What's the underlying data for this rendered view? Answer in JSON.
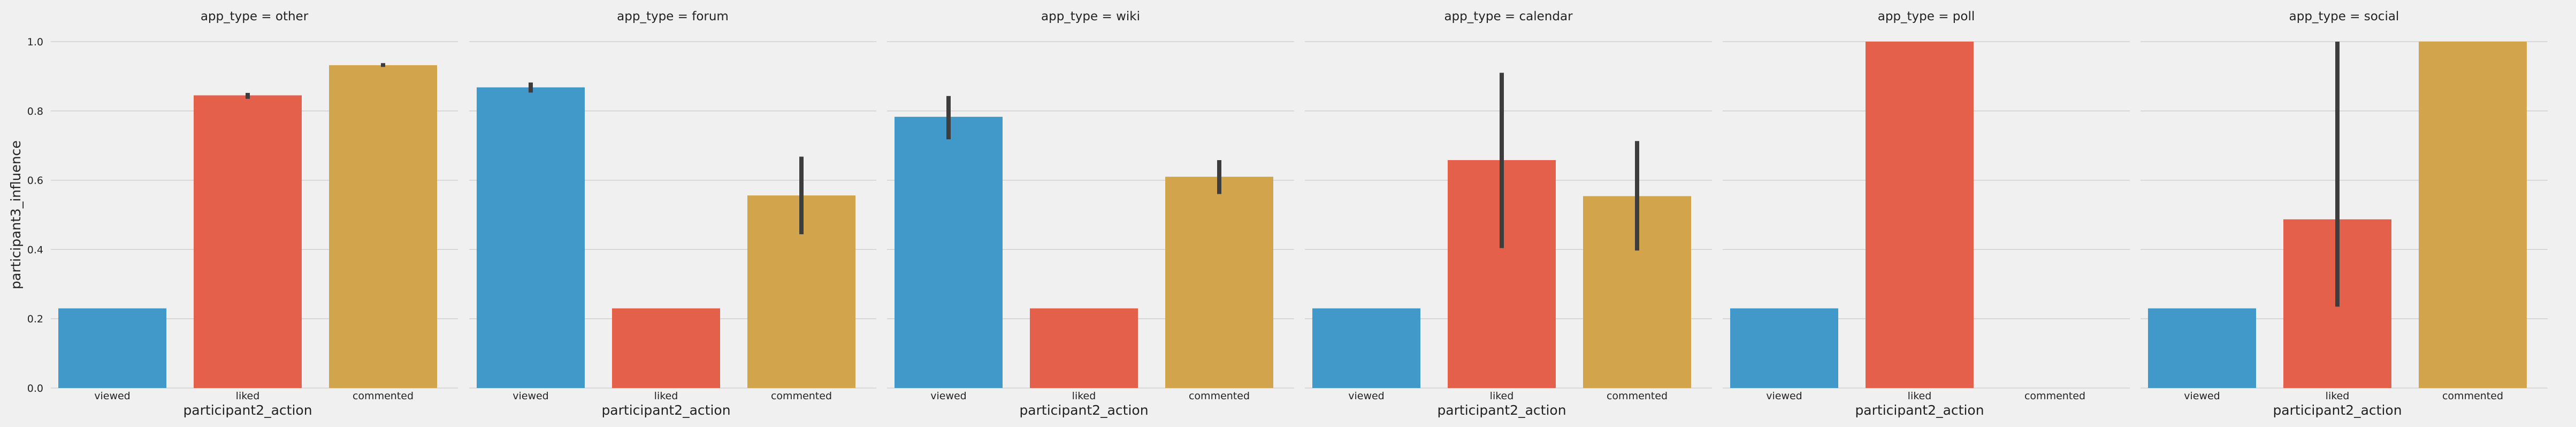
{
  "chart_data": {
    "type": "bar",
    "ylabel": "participant3_influence",
    "xlabel": "participant2_action",
    "ylim": [
      0,
      1.0
    ],
    "yticks": [
      "0.0",
      "0.2",
      "0.4",
      "0.6",
      "0.8",
      "1.0"
    ],
    "categories": [
      "viewed",
      "liked",
      "commented"
    ],
    "colors": [
      "#4199c9",
      "#e5604a",
      "#d2a54c"
    ],
    "panels": [
      {
        "title": "app_type = other",
        "values": [
          0.23,
          0.845,
          0.932
        ],
        "errors": [
          null,
          [
            0.835,
            0.852
          ],
          [
            0.927,
            0.938
          ]
        ]
      },
      {
        "title": "app_type = forum",
        "values": [
          0.868,
          0.23,
          0.556
        ],
        "errors": [
          [
            0.853,
            0.882
          ],
          null,
          [
            0.444,
            0.668
          ]
        ]
      },
      {
        "title": "app_type = wiki",
        "values": [
          0.783,
          0.23,
          0.61
        ],
        "errors": [
          [
            0.718,
            0.843
          ],
          null,
          [
            0.56,
            0.658
          ]
        ]
      },
      {
        "title": "app_type = calendar",
        "values": [
          0.23,
          0.658,
          0.554
        ],
        "errors": [
          null,
          [
            0.404,
            0.91
          ],
          [
            0.397,
            0.713
          ]
        ]
      },
      {
        "title": "app_type = poll",
        "values": [
          0.23,
          1.0,
          null
        ],
        "errors": [
          null,
          null,
          null
        ]
      },
      {
        "title": "app_type = social",
        "values": [
          0.23,
          0.487,
          1.0
        ],
        "errors": [
          null,
          [
            0.235,
            1.0
          ],
          null
        ]
      }
    ]
  }
}
